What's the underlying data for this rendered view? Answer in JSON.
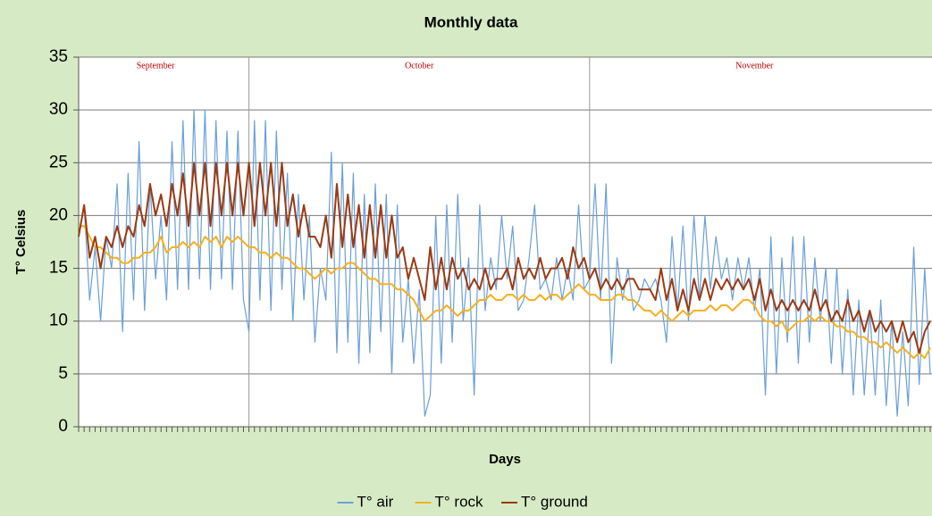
{
  "chart_data": {
    "type": "line",
    "title": "Monthly data",
    "xlabel": "Days",
    "ylabel": "T° Celsius",
    "categories": [
      null,
      null,
      null,
      null,
      null,
      null,
      null,
      null,
      null,
      null,
      null,
      null,
      null,
      null,
      null,
      null,
      null,
      null,
      null,
      null,
      null,
      null,
      null,
      null,
      null,
      null,
      null,
      null,
      null,
      null,
      null,
      null,
      null,
      null,
      null,
      null,
      null,
      null,
      null,
      null,
      null,
      null,
      null,
      null,
      null,
      null,
      null,
      null,
      null,
      null,
      null,
      null,
      null,
      null,
      null,
      null,
      null,
      null,
      null,
      null,
      null,
      null,
      null,
      null,
      null,
      null,
      null,
      null,
      null,
      null,
      null,
      null,
      null,
      null,
      null,
      null,
      null,
      null,
      null,
      null,
      null,
      null,
      null,
      null,
      null,
      null,
      null,
      null,
      null,
      null,
      null,
      null,
      null,
      null,
      null,
      null,
      null,
      null,
      null,
      null,
      null,
      null,
      null,
      null,
      null,
      null,
      null,
      null,
      null,
      null,
      null,
      null,
      null,
      null,
      null,
      null,
      null,
      null,
      null,
      null,
      null,
      null,
      null,
      null,
      null,
      null,
      null,
      null,
      null,
      null,
      null,
      null,
      null,
      null,
      null,
      null,
      null,
      null,
      null,
      null,
      null,
      null,
      null,
      null,
      null,
      null,
      null,
      null,
      null,
      null,
      null,
      null,
      null,
      null,
      null,
      null
    ],
    "series": [
      {
        "name": "T° air",
        "color": "#6a9fd8",
        "values": [
          18,
          21,
          12,
          17,
          10,
          18,
          15,
          23,
          9,
          24,
          12,
          27,
          11,
          23,
          14,
          20,
          12,
          27,
          13,
          29,
          13,
          30,
          14,
          30,
          13,
          29,
          14,
          28,
          13,
          28,
          12,
          9,
          29,
          12,
          29,
          11,
          28,
          13,
          24,
          10,
          22,
          12,
          20,
          8,
          15,
          12,
          26,
          7,
          25,
          8,
          24,
          6,
          22,
          7,
          23,
          9,
          22,
          5,
          21,
          8,
          14,
          6,
          13,
          1,
          3,
          20,
          6,
          21,
          8,
          22,
          10,
          16,
          3,
          21,
          11,
          16,
          13,
          20,
          14,
          19,
          11,
          12,
          16,
          21,
          13,
          14,
          12,
          16,
          12,
          15,
          12,
          21,
          13,
          14,
          23,
          12,
          23,
          6,
          16,
          12,
          15,
          11,
          12,
          14,
          13,
          14,
          12,
          8,
          18,
          11,
          19,
          10,
          20,
          12,
          20,
          13,
          18,
          14,
          16,
          12,
          16,
          13,
          16,
          11,
          15,
          3,
          18,
          5,
          16,
          8,
          18,
          6,
          18,
          8,
          16,
          10,
          15,
          6,
          15,
          5,
          13,
          3,
          12,
          3,
          11,
          3,
          12,
          2,
          10,
          1,
          9,
          2,
          17,
          4,
          15,
          5
        ]
      },
      {
        "name": "T° rock",
        "color": "#f5b01e",
        "values": [
          19,
          19,
          18,
          17,
          17,
          16.5,
          16,
          16,
          15.5,
          15.5,
          16,
          16,
          16.5,
          16.5,
          17,
          18,
          16.5,
          17,
          17,
          17.5,
          17,
          17.5,
          17,
          18,
          17.5,
          18,
          17,
          18,
          17.5,
          18,
          17.5,
          17,
          17,
          16.5,
          16.5,
          16,
          16.5,
          16,
          16,
          15.5,
          15,
          15,
          14.5,
          14,
          14.5,
          15,
          14.5,
          15,
          15,
          15.5,
          15.5,
          15,
          14.5,
          14,
          14,
          13.5,
          13.5,
          13.5,
          13,
          13,
          12.5,
          12,
          11,
          10,
          10.5,
          11,
          11,
          11.5,
          11,
          10.5,
          11,
          11,
          11.5,
          12,
          12,
          12.5,
          12,
          12,
          12.5,
          12.5,
          12,
          12.5,
          12,
          12,
          12.5,
          12,
          12.5,
          12.5,
          12,
          12.5,
          13,
          13.5,
          13,
          12.5,
          12.5,
          12,
          12,
          12,
          12.5,
          12.5,
          12,
          12,
          11.5,
          11,
          11,
          10.5,
          11,
          10.5,
          10,
          10.5,
          11,
          10.5,
          11,
          11,
          11,
          11.5,
          11,
          11.5,
          11.5,
          11,
          11.5,
          12,
          12,
          11.5,
          10.5,
          10,
          10,
          9.5,
          10,
          9,
          9.5,
          10,
          10,
          10.5,
          10,
          10.5,
          10,
          10,
          9.5,
          9.5,
          9,
          9,
          8.5,
          8.5,
          8,
          8,
          7.5,
          8,
          7.5,
          7,
          7.5,
          7,
          6.5,
          7,
          6.5,
          7.5
        ]
      },
      {
        "name": "T° ground",
        "color": "#9b3a12",
        "values": [
          18,
          21,
          16,
          18,
          15,
          18,
          17,
          19,
          17,
          19,
          18,
          21,
          19,
          23,
          20,
          22,
          19,
          23,
          20,
          24,
          19,
          25,
          20,
          25,
          19,
          25,
          20,
          25,
          20,
          25,
          20,
          25,
          19,
          25,
          20,
          25,
          19,
          25,
          19,
          22,
          18,
          21,
          18,
          18,
          17,
          20,
          16,
          23,
          17,
          22,
          17,
          21,
          16,
          21,
          16,
          21,
          16,
          20,
          16,
          17,
          14,
          16,
          14,
          12,
          17,
          13,
          16,
          13,
          16,
          14,
          15,
          13,
          14,
          13,
          15,
          13,
          14,
          14,
          15,
          13,
          16,
          14,
          15,
          14,
          16,
          14,
          15,
          15,
          16,
          14,
          17,
          15,
          16,
          14,
          15,
          13,
          14,
          13,
          14,
          13,
          14,
          14,
          13,
          13,
          13,
          12,
          15,
          12,
          14,
          11,
          13,
          11,
          14,
          12,
          14,
          12,
          14,
          13,
          14,
          13,
          14,
          13,
          14,
          12,
          14,
          11,
          13,
          11,
          12,
          11,
          12,
          11,
          12,
          11,
          13,
          11,
          12,
          10,
          11,
          10,
          12,
          10,
          11,
          9,
          11,
          9,
          10,
          9,
          10,
          8,
          10,
          8,
          9,
          7,
          9,
          10
        ]
      }
    ],
    "annotations": [
      {
        "text": "September",
        "x": 14
      },
      {
        "text": "October",
        "x": 62
      },
      {
        "text": "November",
        "x": 123
      }
    ],
    "vlines": [
      31,
      93
    ],
    "ylim": [
      0,
      35
    ],
    "yticks": [
      0,
      5,
      10,
      15,
      20,
      25,
      30,
      35
    ],
    "grid": true,
    "legend": "bottom"
  }
}
